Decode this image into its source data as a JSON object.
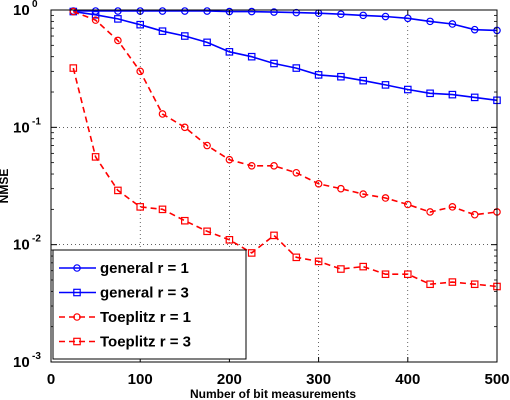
{
  "chart_data": {
    "type": "line",
    "xlabel": "Number of bit measurements",
    "ylabel": "NMSE",
    "xlim": [
      0,
      500
    ],
    "ylim": [
      0.001,
      1
    ],
    "yscale": "log",
    "grid": true,
    "legend_position": "bottom-left",
    "x_ticks": [
      0,
      100,
      200,
      300,
      400,
      500
    ],
    "y_ticks": [
      {
        "value": 0.001,
        "base": "10",
        "exp": "-3"
      },
      {
        "value": 0.01,
        "base": "10",
        "exp": "-2"
      },
      {
        "value": 0.1,
        "base": "10",
        "exp": "-1"
      },
      {
        "value": 1,
        "base": "10",
        "exp": "0"
      }
    ],
    "x": [
      25,
      50,
      75,
      100,
      125,
      150,
      175,
      200,
      225,
      250,
      275,
      300,
      325,
      350,
      375,
      400,
      425,
      450,
      475,
      500
    ],
    "series": [
      {
        "name": "general r = 1",
        "color": "#0000ff",
        "line_style": "solid",
        "marker": "circle",
        "values": [
          0.98,
          0.98,
          0.98,
          0.98,
          0.98,
          0.98,
          0.98,
          0.97,
          0.97,
          0.96,
          0.95,
          0.94,
          0.92,
          0.9,
          0.88,
          0.85,
          0.8,
          0.76,
          0.68,
          0.67
        ]
      },
      {
        "name": "general r = 3",
        "color": "#0000ff",
        "line_style": "solid",
        "marker": "square",
        "values": [
          0.97,
          0.91,
          0.84,
          0.75,
          0.66,
          0.6,
          0.53,
          0.44,
          0.4,
          0.35,
          0.32,
          0.28,
          0.27,
          0.25,
          0.23,
          0.21,
          0.195,
          0.19,
          0.18,
          0.17
        ]
      },
      {
        "name": "Toeplitz r = 1",
        "color": "#ff0000",
        "line_style": "dashed",
        "marker": "circle",
        "values": [
          0.97,
          0.82,
          0.55,
          0.3,
          0.13,
          0.1,
          0.07,
          0.053,
          0.047,
          0.047,
          0.041,
          0.033,
          0.03,
          0.027,
          0.025,
          0.022,
          0.019,
          0.021,
          0.018,
          0.019
        ]
      },
      {
        "name": "Toeplitz r = 3",
        "color": "#ff0000",
        "line_style": "dashed",
        "marker": "square",
        "values": [
          0.32,
          0.056,
          0.029,
          0.021,
          0.02,
          0.016,
          0.013,
          0.011,
          0.0085,
          0.012,
          0.0078,
          0.0072,
          0.0062,
          0.0065,
          0.0056,
          0.0056,
          0.0046,
          0.0048,
          0.0046,
          0.0044
        ]
      }
    ]
  }
}
